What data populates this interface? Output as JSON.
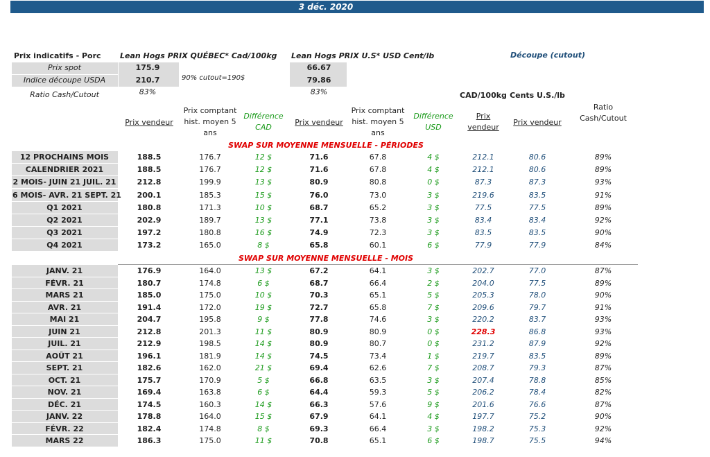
{
  "header": {
    "date": "3 déc. 2020"
  },
  "summary": {
    "title": "Prix indicatifs - Porc",
    "quebec_title": "Lean Hogs PRIX QUÉBEC* Cad/100kg",
    "us_title": "Lean Hogs PRIX U.S* USD Cent/lb",
    "cutout_title": "Découpe (cutout)",
    "rows": [
      {
        "label": "Prix spot",
        "quebec": "175.9",
        "us": "66.67"
      },
      {
        "label": "Indice découpe USDA",
        "quebec": "210.7",
        "note": "90% cutout=190$",
        "us": "79.86"
      },
      {
        "label": "Ratio Cash/Cutout",
        "quebec": "83%",
        "us": "83%"
      }
    ]
  },
  "columns": {
    "units": [
      "CAD/100kg",
      "Cents U.S./lb"
    ],
    "headers": [
      "Prix vendeur",
      "Prix comptant hist. moyen 5 ans",
      "Différence CAD",
      "Prix vendeur",
      "Prix comptant hist. moyen 5 ans",
      "Différence USD",
      "Prix vendeur",
      "Prix vendeur",
      "Ratio Cash/Cutout"
    ]
  },
  "sections": [
    {
      "title": "SWAP SUR MOYENNE MENSUELLE - PÉRIODES",
      "rows": [
        [
          "12 PROCHAINS MOIS",
          "188.5",
          "176.7",
          "12 $",
          "71.6",
          "67.8",
          "4 $",
          "212.1",
          "80.6",
          "89%"
        ],
        [
          "CALENDRIER 2021",
          "188.5",
          "176.7",
          "12 $",
          "71.6",
          "67.8",
          "4 $",
          "212.1",
          "80.6",
          "89%"
        ],
        [
          "2 MOIS- JUIN 21 JUIL. 21",
          "212.8",
          "199.9",
          "13 $",
          "80.9",
          "80.8",
          "0 $",
          "87.3",
          "87.3",
          "93%"
        ],
        [
          "6 MOIS- AVR. 21 SEPT. 21",
          "200.1",
          "185.3",
          "15 $",
          "76.0",
          "73.0",
          "3 $",
          "219.6",
          "83.5",
          "91%"
        ],
        [
          "Q1 2021",
          "180.8",
          "171.3",
          "10 $",
          "68.7",
          "65.2",
          "3 $",
          "77.5",
          "77.5",
          "89%"
        ],
        [
          "Q2 2021",
          "202.9",
          "189.7",
          "13 $",
          "77.1",
          "73.8",
          "3 $",
          "83.4",
          "83.4",
          "92%"
        ],
        [
          "Q3 2021",
          "197.2",
          "180.8",
          "16 $",
          "74.9",
          "72.3",
          "3 $",
          "83.5",
          "83.5",
          "90%"
        ],
        [
          "Q4 2021",
          "173.2",
          "165.0",
          "8 $",
          "65.8",
          "60.1",
          "6 $",
          "77.9",
          "77.9",
          "84%"
        ]
      ]
    },
    {
      "title": "SWAP SUR MOYENNE MENSUELLE - MOIS",
      "rows": [
        [
          "JANV. 21",
          "176.9",
          "164.0",
          "13 $",
          "67.2",
          "64.1",
          "3 $",
          "202.7",
          "77.0",
          "87%"
        ],
        [
          "FÉVR. 21",
          "180.7",
          "174.8",
          "6 $",
          "68.7",
          "66.4",
          "2 $",
          "204.0",
          "77.5",
          "89%"
        ],
        [
          "MARS 21",
          "185.0",
          "175.0",
          "10 $",
          "70.3",
          "65.1",
          "5 $",
          "205.3",
          "78.0",
          "90%"
        ],
        [
          "AVR. 21",
          "191.4",
          "172.0",
          "19 $",
          "72.7",
          "65.8",
          "7 $",
          "209.6",
          "79.7",
          "91%"
        ],
        [
          "MAI 21",
          "204.7",
          "195.8",
          "9 $",
          "77.8",
          "74.6",
          "3 $",
          "220.2",
          "83.7",
          "93%"
        ],
        [
          "JUIN 21",
          "212.8",
          "201.3",
          "11 $",
          "80.9",
          "80.9",
          "0 $",
          "228.3",
          "86.8",
          "93%"
        ],
        [
          "JUIL. 21",
          "212.9",
          "198.5",
          "14 $",
          "80.9",
          "80.7",
          "0 $",
          "231.2",
          "87.9",
          "92%"
        ],
        [
          "AOÛT 21",
          "196.1",
          "181.9",
          "14 $",
          "74.5",
          "73.4",
          "1 $",
          "219.7",
          "83.5",
          "89%"
        ],
        [
          "SEPT. 21",
          "182.6",
          "162.0",
          "21 $",
          "69.4",
          "62.6",
          "7 $",
          "208.7",
          "79.3",
          "87%"
        ],
        [
          "OCT. 21",
          "175.7",
          "170.9",
          "5 $",
          "66.8",
          "63.5",
          "3 $",
          "207.4",
          "78.8",
          "85%"
        ],
        [
          "NOV. 21",
          "169.4",
          "163.8",
          "6 $",
          "64.4",
          "59.3",
          "5 $",
          "206.2",
          "78.4",
          "82%"
        ],
        [
          "DÉC. 21",
          "174.5",
          "160.3",
          "14 $",
          "66.3",
          "57.6",
          "9 $",
          "201.6",
          "76.6",
          "87%"
        ],
        [
          "JANV. 22",
          "178.8",
          "164.0",
          "15 $",
          "67.9",
          "64.1",
          "4 $",
          "197.7",
          "75.2",
          "90%"
        ],
        [
          "FÉVR. 22",
          "182.4",
          "174.8",
          "8 $",
          "69.3",
          "66.4",
          "3 $",
          "198.2",
          "75.3",
          "92%"
        ],
        [
          "MARS 22",
          "186.3",
          "175.0",
          "11 $",
          "70.8",
          "65.1",
          "6 $",
          "198.7",
          "75.5",
          "94%"
        ]
      ]
    }
  ]
}
